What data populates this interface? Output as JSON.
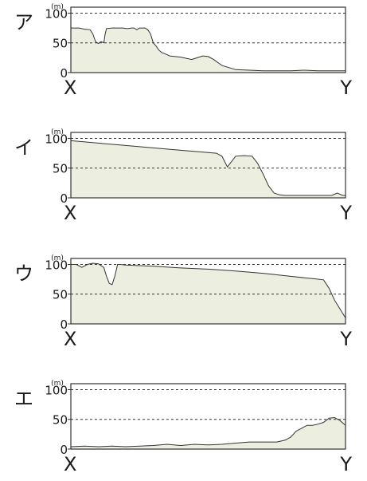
{
  "chart_data": [
    {
      "type": "area",
      "label": "ア",
      "unit": "(m)",
      "xlabel_left": "X",
      "xlabel_right": "Y",
      "yticks": [
        "0",
        "50",
        "100"
      ],
      "ylim": [
        0,
        110
      ],
      "grid": "dashed at 50 and 100",
      "x": [
        0,
        3,
        5,
        7,
        8,
        9,
        10,
        11,
        12,
        12.5,
        13,
        15,
        17,
        19,
        20,
        21,
        22,
        23,
        24,
        25,
        26,
        27,
        28,
        29,
        30,
        31,
        32,
        33,
        34,
        35,
        36,
        38,
        40,
        42,
        44,
        46,
        48,
        50,
        52,
        55,
        60,
        65,
        70,
        75,
        80,
        85,
        90,
        95,
        100
      ],
      "elevation": [
        75,
        75,
        73,
        72,
        65,
        52,
        49,
        52,
        50,
        65,
        74,
        75,
        75,
        75,
        74,
        74,
        75,
        75,
        72,
        75,
        75,
        75,
        72,
        65,
        50,
        45,
        38,
        34,
        32,
        30,
        28,
        27,
        26,
        24,
        22,
        25,
        28,
        27,
        22,
        12,
        5,
        4,
        3,
        3,
        3,
        4,
        3,
        3,
        3
      ]
    },
    {
      "type": "area",
      "label": "イ",
      "unit": "(m)",
      "xlabel_left": "X",
      "xlabel_right": "Y",
      "yticks": [
        "0",
        "50",
        "100"
      ],
      "ylim": [
        0,
        110
      ],
      "grid": "dashed at 50 and 100",
      "x": [
        0,
        3,
        10,
        20,
        30,
        40,
        48,
        53,
        55,
        57,
        58,
        60,
        63,
        66,
        68,
        70,
        72,
        74,
        76,
        78,
        80,
        85,
        90,
        95,
        97,
        99,
        100
      ],
      "elevation": [
        96,
        95,
        92,
        88,
        84,
        80,
        77,
        75,
        70,
        52,
        58,
        70,
        71,
        70,
        58,
        40,
        20,
        8,
        5,
        4,
        4,
        4,
        4,
        4,
        8,
        4,
        4
      ]
    },
    {
      "type": "area",
      "label": "ウ",
      "unit": "(m)",
      "xlabel_left": "X",
      "xlabel_right": "Y",
      "yticks": [
        "0",
        "50",
        "100"
      ],
      "ylim": [
        0,
        110
      ],
      "grid": "dashed at 50 and 100",
      "x": [
        0,
        2,
        4,
        6,
        8,
        10,
        12,
        13,
        14,
        15,
        16,
        17,
        18,
        20,
        30,
        40,
        50,
        60,
        70,
        80,
        88,
        92,
        94,
        96,
        98,
        100
      ],
      "elevation": [
        100,
        100,
        95,
        100,
        102,
        101,
        95,
        80,
        68,
        66,
        80,
        100,
        100,
        99,
        97,
        94,
        92,
        89,
        85,
        80,
        76,
        74,
        60,
        40,
        25,
        10
      ]
    },
    {
      "type": "area",
      "label": "エ",
      "unit": "(m)",
      "xlabel_left": "X",
      "xlabel_right": "Y",
      "yticks": [
        "0",
        "50",
        "100"
      ],
      "ylim": [
        0,
        110
      ],
      "grid": "dashed at 50 and 100",
      "x": [
        0,
        5,
        10,
        15,
        20,
        25,
        30,
        35,
        40,
        45,
        50,
        55,
        60,
        65,
        70,
        75,
        78,
        80,
        82,
        84,
        86,
        88,
        90,
        92,
        94,
        96,
        98,
        100
      ],
      "elevation": [
        4,
        5,
        4,
        5,
        4,
        5,
        6,
        8,
        6,
        8,
        7,
        8,
        10,
        12,
        12,
        12,
        15,
        20,
        30,
        35,
        40,
        40,
        42,
        45,
        52,
        53,
        48,
        40
      ]
    }
  ],
  "colors": {
    "fill": "#eceee0",
    "line": "#333333",
    "grid": "#333333",
    "text": "#1a1a1a"
  }
}
